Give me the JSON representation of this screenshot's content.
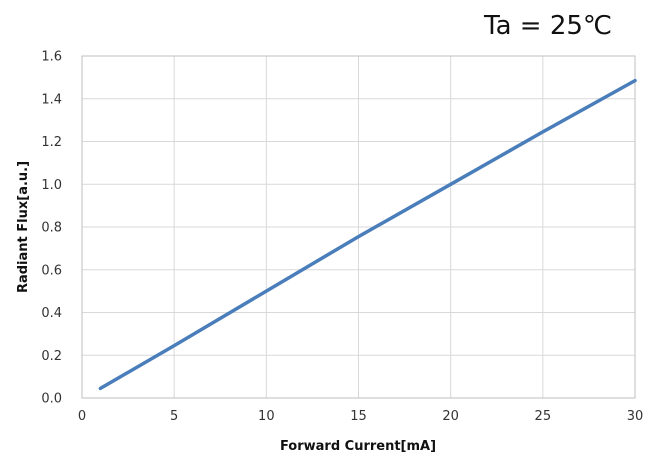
{
  "annotation": "Ta = 25℃",
  "chart_data": {
    "type": "line",
    "title": "",
    "xlabel": "Forward Current[mA]",
    "ylabel": "Radiant Flux[a.u.]",
    "xlim": [
      0,
      30
    ],
    "ylim": [
      0,
      1.6
    ],
    "x_ticks": [
      "0",
      "5",
      "10",
      "15",
      "20",
      "25",
      "30"
    ],
    "y_ticks": [
      "0.0",
      "0.2",
      "0.4",
      "0.6",
      "0.8",
      "1.0",
      "1.2",
      "1.4",
      "1.6"
    ],
    "grid": true,
    "series": [
      {
        "color": "#4a7ebb",
        "x": [
          1,
          5,
          10,
          15,
          20,
          25,
          30
        ],
        "y": [
          0.045,
          0.245,
          0.5,
          0.755,
          1.0,
          1.245,
          1.485
        ]
      }
    ]
  }
}
